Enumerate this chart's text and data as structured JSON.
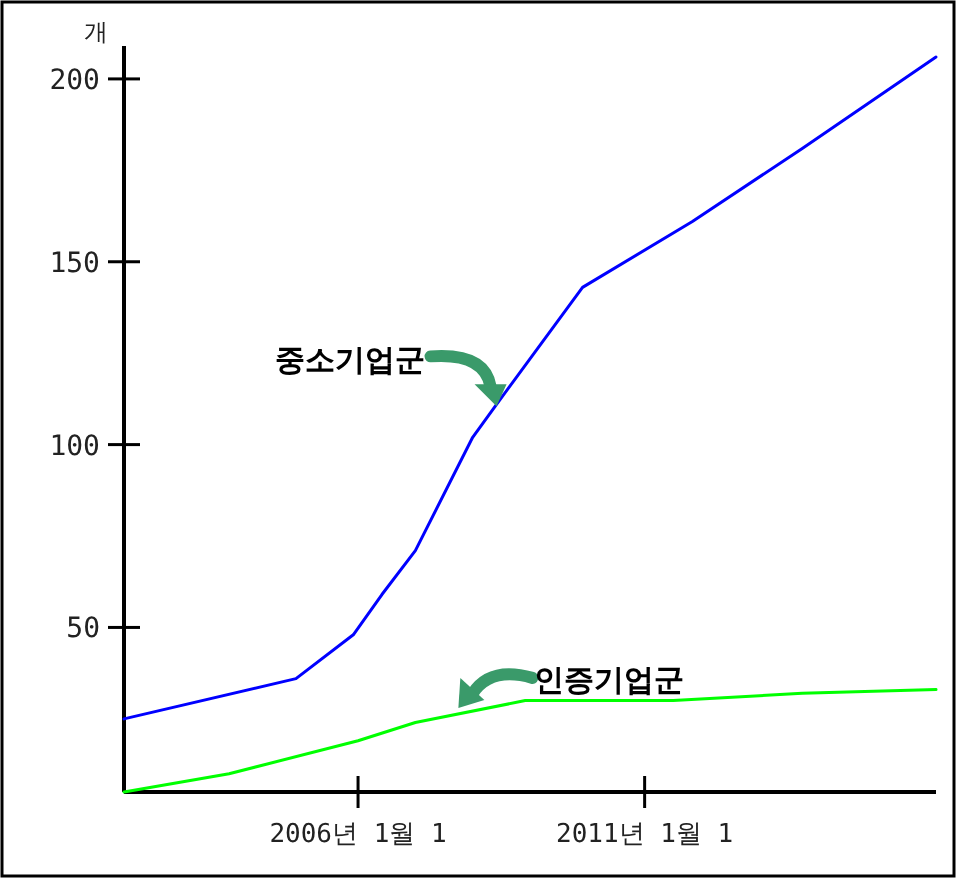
{
  "chart_data": {
    "type": "line",
    "ylabel": "개",
    "xlim": [
      "2001-12",
      "2016-02"
    ],
    "ylim": [
      5,
      209
    ],
    "xticks": [
      {
        "value": "2006-01-01",
        "label": "2006년 1월 1"
      },
      {
        "value": "2011-01-01",
        "label": "2011년 1월 1"
      }
    ],
    "yticks": [
      50,
      100,
      150,
      200
    ],
    "grid": false,
    "marker": "none",
    "line_style": "solid",
    "series": [
      {
        "color": "#0000ff",
        "x": [
          "2001-12",
          "2004-12",
          "2005-12",
          "2006-06",
          "2007-01",
          "2008-01",
          "2008-06",
          "2009-12",
          "2011-11",
          "2013-10",
          "2016-02"
        ],
        "values": [
          25,
          36,
          48,
          59,
          71,
          102,
          111,
          143,
          161,
          181,
          206
        ]
      },
      {
        "color": "#00ff00",
        "x": [
          "2001-12",
          "2003-10",
          "2006-01",
          "2007-01",
          "2008-12",
          "2011-07",
          "2013-10",
          "2016-02"
        ],
        "values": [
          5,
          10,
          19,
          24,
          30,
          30,
          32,
          33
        ]
      }
    ],
    "annotations": [
      {
        "text": "중소기업군",
        "x": "2008-06",
        "y": 111
      },
      {
        "text": "인증기업군",
        "x": "2007-10",
        "y": 28
      }
    ]
  }
}
